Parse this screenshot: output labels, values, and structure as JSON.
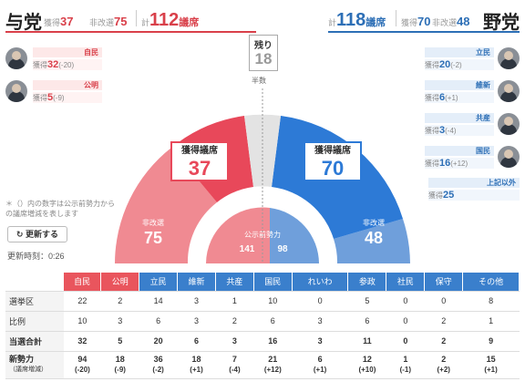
{
  "ruling": {
    "title": "与党",
    "won_label": "獲得",
    "won": "37",
    "unreelected_label": "非改選",
    "unreelected": "75",
    "total_prefix": "計",
    "total": "112",
    "total_unit": "議席",
    "color": "#d9404a",
    "parties": [
      {
        "name": "自民",
        "prefix": "獲得",
        "value": "32",
        "diff": "(-20)"
      },
      {
        "name": "公明",
        "prefix": "獲得",
        "value": "5",
        "diff": "(-9)"
      }
    ]
  },
  "opposition": {
    "title": "野党",
    "won_label": "獲得",
    "won": "70",
    "unreelected_label": "非改選",
    "unreelected": "48",
    "total_prefix": "計",
    "total": "118",
    "total_unit": "議席",
    "color": "#2d6fb6",
    "parties": [
      {
        "name": "立民",
        "prefix": "獲得",
        "value": "20",
        "diff": "(-2)"
      },
      {
        "name": "維新",
        "prefix": "獲得",
        "value": "6",
        "diff": "(+1)"
      },
      {
        "name": "共産",
        "prefix": "獲得",
        "value": "3",
        "diff": "(-4)"
      },
      {
        "name": "国民",
        "prefix": "獲得",
        "value": "16",
        "diff": "(+12)"
      },
      {
        "name": "上記以外",
        "prefix": "獲得",
        "value": "25",
        "diff": ""
      }
    ]
  },
  "remaining": {
    "label": "残り",
    "value": "18"
  },
  "majority_label": "半数",
  "center": {
    "won_label": "獲得議席",
    "ruling_won": "37",
    "opposition_won": "70",
    "unreelected_label": "非改選",
    "ruling_unreelected": "75",
    "opposition_unreelected": "48",
    "koji_label": "公示前勢力",
    "ruling_koji": "141",
    "opposition_koji": "98"
  },
  "note": "＊（）内の数字は公示前勢力からの議席増減を表します",
  "refresh_label": "更新する",
  "update_time": "更新時刻：0:26",
  "table": {
    "columns": [
      {
        "name": "自民",
        "color": "#e9555d"
      },
      {
        "name": "公明",
        "color": "#e9555d"
      },
      {
        "name": "立民",
        "color": "#3a7fcc"
      },
      {
        "name": "維新",
        "color": "#3a7fcc"
      },
      {
        "name": "共産",
        "color": "#3a7fcc"
      },
      {
        "name": "国民",
        "color": "#3a7fcc"
      },
      {
        "name": "れいわ",
        "color": "#3a7fcc"
      },
      {
        "name": "参政",
        "color": "#3a7fcc"
      },
      {
        "name": "社民",
        "color": "#3a7fcc"
      },
      {
        "name": "保守",
        "color": "#3a7fcc"
      },
      {
        "name": "その他",
        "color": "#3a7fcc"
      }
    ],
    "rows": [
      {
        "label": "選挙区",
        "values": [
          "22",
          "2",
          "14",
          "3",
          "1",
          "10",
          "0",
          "5",
          "0",
          "0",
          "8"
        ]
      },
      {
        "label": "比例",
        "values": [
          "10",
          "3",
          "6",
          "3",
          "2",
          "6",
          "3",
          "6",
          "0",
          "2",
          "1"
        ]
      },
      {
        "label": "当選合計",
        "values": [
          "32",
          "5",
          "20",
          "6",
          "3",
          "16",
          "3",
          "11",
          "0",
          "2",
          "9"
        ]
      }
    ],
    "current": {
      "label": "新勢力",
      "sub": "（議席増減）",
      "values": [
        "94",
        "18",
        "36",
        "18",
        "7",
        "21",
        "6",
        "12",
        "1",
        "2",
        "15"
      ],
      "diffs": [
        "(-20)",
        "(-9)",
        "(-2)",
        "(+1)",
        "(-4)",
        "(+12)",
        "(+1)",
        "(+10)",
        "(-1)",
        "(+2)",
        "(+1)"
      ]
    }
  }
}
